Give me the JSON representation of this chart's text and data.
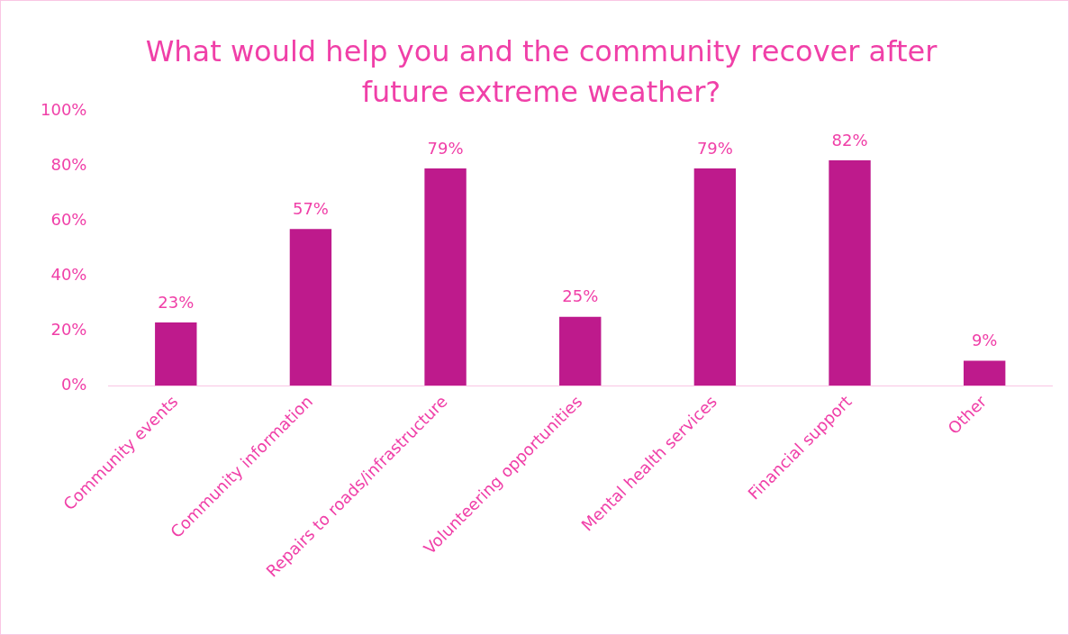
{
  "chart_data": {
    "type": "bar",
    "title": "What would help you and the community recover after future extreme weather?",
    "categories": [
      "Community events",
      "Community information",
      "Repairs to roads/infrastructure",
      "Volunteering opportunities",
      "Mental health services",
      "Financial support",
      "Other"
    ],
    "values": [
      23,
      57,
      79,
      25,
      79,
      82,
      9
    ],
    "value_labels": [
      "23%",
      "57%",
      "79%",
      "25%",
      "79%",
      "82%",
      "9%"
    ],
    "color": "#be1a8c",
    "ylim": [
      0,
      100
    ],
    "yticks": [
      {
        "value": 0,
        "label": "0%"
      },
      {
        "value": 20,
        "label": "20%"
      },
      {
        "value": 40,
        "label": "40%"
      },
      {
        "value": 60,
        "label": "60%"
      },
      {
        "value": 80,
        "label": "80%"
      },
      {
        "value": 100,
        "label": "100%"
      }
    ],
    "grid": false,
    "legend": false
  }
}
